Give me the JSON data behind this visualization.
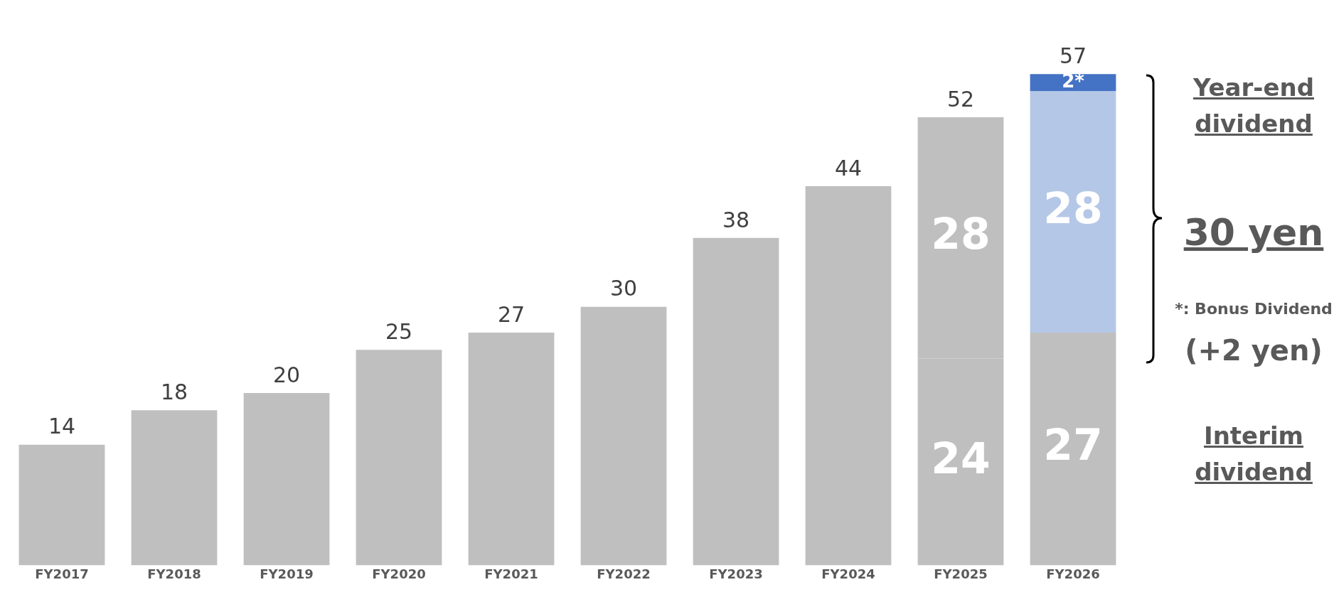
{
  "chart_data": {
    "type": "bar",
    "stacked": true,
    "categories": [
      "FY2017",
      "FY2018",
      "FY2019",
      "FY2020",
      "FY2021",
      "FY2022",
      "FY2023",
      "FY2024",
      "FY2025",
      "FY2026"
    ],
    "series": [
      {
        "color": "#bfbfbf",
        "values": [
          14,
          18,
          20,
          25,
          27,
          30,
          38,
          44,
          24,
          27
        ],
        "value_labels": [
          null,
          null,
          null,
          null,
          null,
          null,
          null,
          null,
          "24",
          "27"
        ]
      },
      {
        "colors": [
          "#bfbfbf",
          "#bfbfbf",
          "#bfbfbf",
          "#bfbfbf",
          "#bfbfbf",
          "#bfbfbf",
          "#bfbfbf",
          "#bfbfbf",
          "#bfbfbf",
          "#b4c7e7"
        ],
        "values": [
          null,
          null,
          null,
          null,
          null,
          null,
          null,
          null,
          28,
          28
        ],
        "value_labels": [
          null,
          null,
          null,
          null,
          null,
          null,
          null,
          null,
          "28",
          "28"
        ]
      },
      {
        "color": "#4472c4",
        "values": [
          null,
          null,
          null,
          null,
          null,
          null,
          null,
          null,
          null,
          2
        ],
        "value_labels": [
          null,
          null,
          null,
          null,
          null,
          null,
          null,
          null,
          null,
          "2*"
        ]
      }
    ],
    "totals": [
      "14",
      "18",
      "20",
      "25",
      "27",
      "30",
      "38",
      "44",
      "52",
      "57"
    ],
    "annotations": [
      "Year-end dividend",
      "30 yen",
      "*: Bonus Dividend",
      "(+2 yen)",
      "Interim dividend"
    ],
    "tick_labels": "x",
    "grid": false,
    "legend": false
  }
}
